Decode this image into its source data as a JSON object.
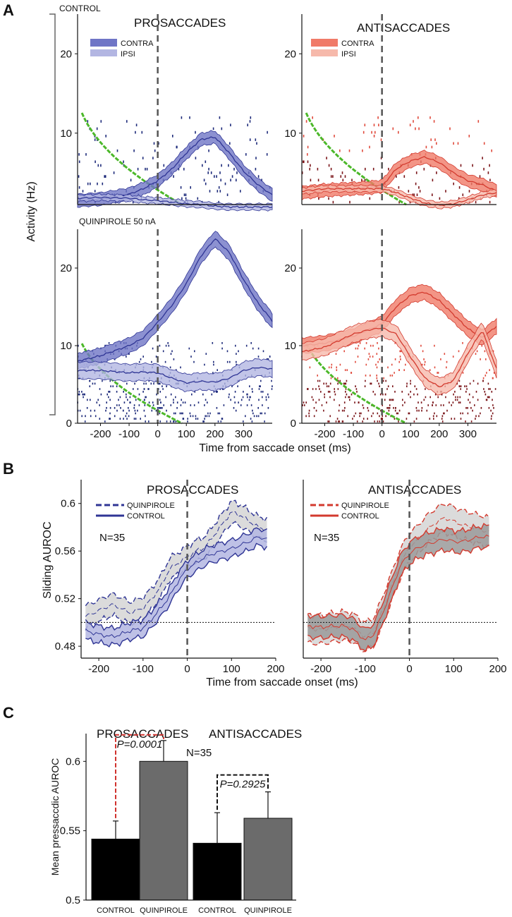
{
  "panel_labels": {
    "a": "A",
    "b": "B",
    "c": "C"
  },
  "colors": {
    "pro": "#2f3595",
    "pro_band": "#6f75c6",
    "pro_band_light": "#b3b6e2",
    "anti": "#d33a2e",
    "anti_band": "#f07a68",
    "anti_band_light": "#f6b9ab",
    "raster_pro": "#1d2a7a",
    "raster_anti_dark": "#7a1418",
    "raster_anti_light": "#e04a3c",
    "green": "#4cb82a",
    "ctrl_bar": "#000000",
    "quin_bar": "#6b6b6b",
    "quin_band": "#d9d9d9",
    "ctrl_band_anti": "#9a9a9a",
    "sig": "#d0312d"
  },
  "chart_data": [
    {
      "id": "A",
      "type": "line",
      "row_labels": [
        "CONTROL",
        "QUINPIROLE 50 nA"
      ],
      "column_titles": [
        "PROSACCADES",
        "ANTISACCADES"
      ],
      "legend_pro": [
        "CONTRA",
        "IPSI"
      ],
      "legend_anti": [
        "CONTRA",
        "IPSI"
      ],
      "ylabel": "Activity (Hz)",
      "xlabel": "Time from saccade onset (ms)",
      "xticks": [
        -200,
        -100,
        0,
        100,
        200,
        300
      ],
      "xlim": [
        -280,
        400
      ],
      "yticks_top": [
        10,
        20
      ],
      "yticks_bottom": [
        0,
        10,
        20
      ],
      "ylim": [
        0,
        25
      ],
      "t": [
        -280,
        -200,
        -100,
        -50,
        0,
        50,
        100,
        150,
        200,
        250,
        300,
        350,
        400
      ],
      "panels": [
        {
          "row": 0,
          "col": 0,
          "base": 1,
          "series": [
            {
              "name": "CONTRA",
              "values": [
                1.5,
                1.7,
                2.3,
                3.0,
                4.0,
                5.5,
                7.5,
                9.2,
                9.5,
                7.5,
                5.2,
                3.5,
                2.2
              ],
              "sd": 0.8
            },
            {
              "name": "IPSI",
              "values": [
                1.8,
                1.9,
                1.8,
                1.6,
                1.5,
                1.3,
                1.1,
                1.0,
                0.8,
                0.7,
                0.7,
                0.7,
                0.7
              ],
              "sd": 0.4
            }
          ]
        },
        {
          "row": 0,
          "col": 1,
          "base": 1,
          "series": [
            {
              "name": "CONTRA",
              "values": [
                2.5,
                2.8,
                3.0,
                3.1,
                3.3,
                5.5,
                6.5,
                7.0,
                6.3,
                5.0,
                4.0,
                3.5,
                2.7
              ],
              "sd": 0.8
            },
            {
              "name": "IPSI",
              "values": [
                2.7,
                3.0,
                3.0,
                3.0,
                3.0,
                2.5,
                1.8,
                1.2,
                0.9,
                1.1,
                1.6,
                2.2,
                2.5
              ],
              "sd": 0.4
            }
          ]
        },
        {
          "row": 1,
          "col": 0,
          "base": 0,
          "series": [
            {
              "name": "CONTRA",
              "values": [
                8.0,
                8.7,
                10.0,
                11.0,
                13.0,
                15.2,
                18.0,
                21.5,
                23.8,
                22.0,
                18.5,
                15.5,
                13.2
              ],
              "sd": 1.0
            },
            {
              "name": "IPSI",
              "values": [
                6.8,
                6.8,
                6.5,
                6.6,
                6.5,
                5.8,
                5.2,
                5.4,
                5.3,
                5.8,
                6.8,
                7.2,
                7.0
              ],
              "sd": 1.1
            }
          ]
        },
        {
          "row": 1,
          "col": 1,
          "base": 0,
          "series": [
            {
              "name": "CONTRA",
              "values": [
                10.0,
                10.3,
                11.2,
                12.0,
                12.8,
                15.0,
                16.5,
                16.9,
                15.8,
                14.0,
                12.2,
                11.0,
                12.5
              ],
              "sd": 1.0
            },
            {
              "name": "IPSI",
              "values": [
                9.2,
                9.8,
                11.5,
                12.0,
                12.3,
                11.5,
                8.5,
                5.8,
                4.7,
                5.5,
                9.0,
                12.0,
                7.0
              ],
              "sd": 1.1
            }
          ]
        }
      ]
    },
    {
      "id": "B",
      "type": "line",
      "column_titles": [
        "PROSACCADES",
        "ANTISACCADES"
      ],
      "legend": [
        "QUINPIROLE",
        "CONTROL"
      ],
      "n_label": "N=35",
      "ylabel": "Sliding AUROC",
      "xlabel": "Time from saccade onset (ms)",
      "xticks": [
        -200,
        -100,
        0,
        100,
        200
      ],
      "xlim": [
        -240,
        200
      ],
      "yticks": [
        0.48,
        0.52,
        0.56,
        0.6
      ],
      "ylim": [
        0.47,
        0.62
      ],
      "chance": 0.5,
      "x": [
        -230,
        -200,
        -170,
        -150,
        -130,
        -100,
        -80,
        -60,
        -40,
        -20,
        0,
        20,
        40,
        60,
        80,
        100,
        120,
        140,
        160,
        180
      ],
      "panels": [
        {
          "col": 0,
          "series": [
            {
              "name": "QUINPIROLE",
              "values": [
                0.505,
                0.51,
                0.515,
                0.512,
                0.508,
                0.512,
                0.52,
                0.53,
                0.545,
                0.55,
                0.555,
                0.56,
                0.563,
                0.573,
                0.583,
                0.593,
                0.59,
                0.585,
                0.58,
                0.578
              ],
              "sd": 0.009
            },
            {
              "name": "CONTROL",
              "values": [
                0.493,
                0.49,
                0.488,
                0.49,
                0.493,
                0.495,
                0.503,
                0.512,
                0.522,
                0.535,
                0.545,
                0.55,
                0.555,
                0.558,
                0.56,
                0.562,
                0.565,
                0.568,
                0.572,
                0.57
              ],
              "sd": 0.007
            }
          ]
        },
        {
          "col": 1,
          "series": [
            {
              "name": "QUINPIROLE",
              "values": [
                0.495,
                0.494,
                0.496,
                0.497,
                0.496,
                0.488,
                0.492,
                0.51,
                0.53,
                0.55,
                0.563,
                0.57,
                0.578,
                0.584,
                0.588,
                0.585,
                0.582,
                0.58,
                0.578,
                0.576
              ],
              "sd": 0.012
            },
            {
              "name": "CONTROL",
              "values": [
                0.497,
                0.496,
                0.497,
                0.497,
                0.495,
                0.485,
                0.49,
                0.508,
                0.528,
                0.548,
                0.558,
                0.563,
                0.566,
                0.568,
                0.57,
                0.568,
                0.568,
                0.57,
                0.572,
                0.572
              ],
              "sd": 0.009
            }
          ]
        }
      ]
    },
    {
      "id": "C",
      "type": "bar",
      "ylabel": "Mean pressaccdic AUROC",
      "group_titles": [
        "PROSACCADES",
        "ANTISACCADES"
      ],
      "categories": [
        "CONTROL",
        "QUINPIROLE",
        "CONTROL",
        "QUINPIROLE"
      ],
      "values": [
        0.544,
        0.6,
        0.541,
        0.559
      ],
      "errors": [
        0.013,
        0.015,
        0.022,
        0.019
      ],
      "yticks": [
        0.5,
        0.55,
        0.6
      ],
      "ylim": [
        0.5,
        0.62
      ],
      "n_label": "N=35",
      "pvalues": [
        "P=0.0001",
        "P=0.2925"
      ]
    }
  ]
}
